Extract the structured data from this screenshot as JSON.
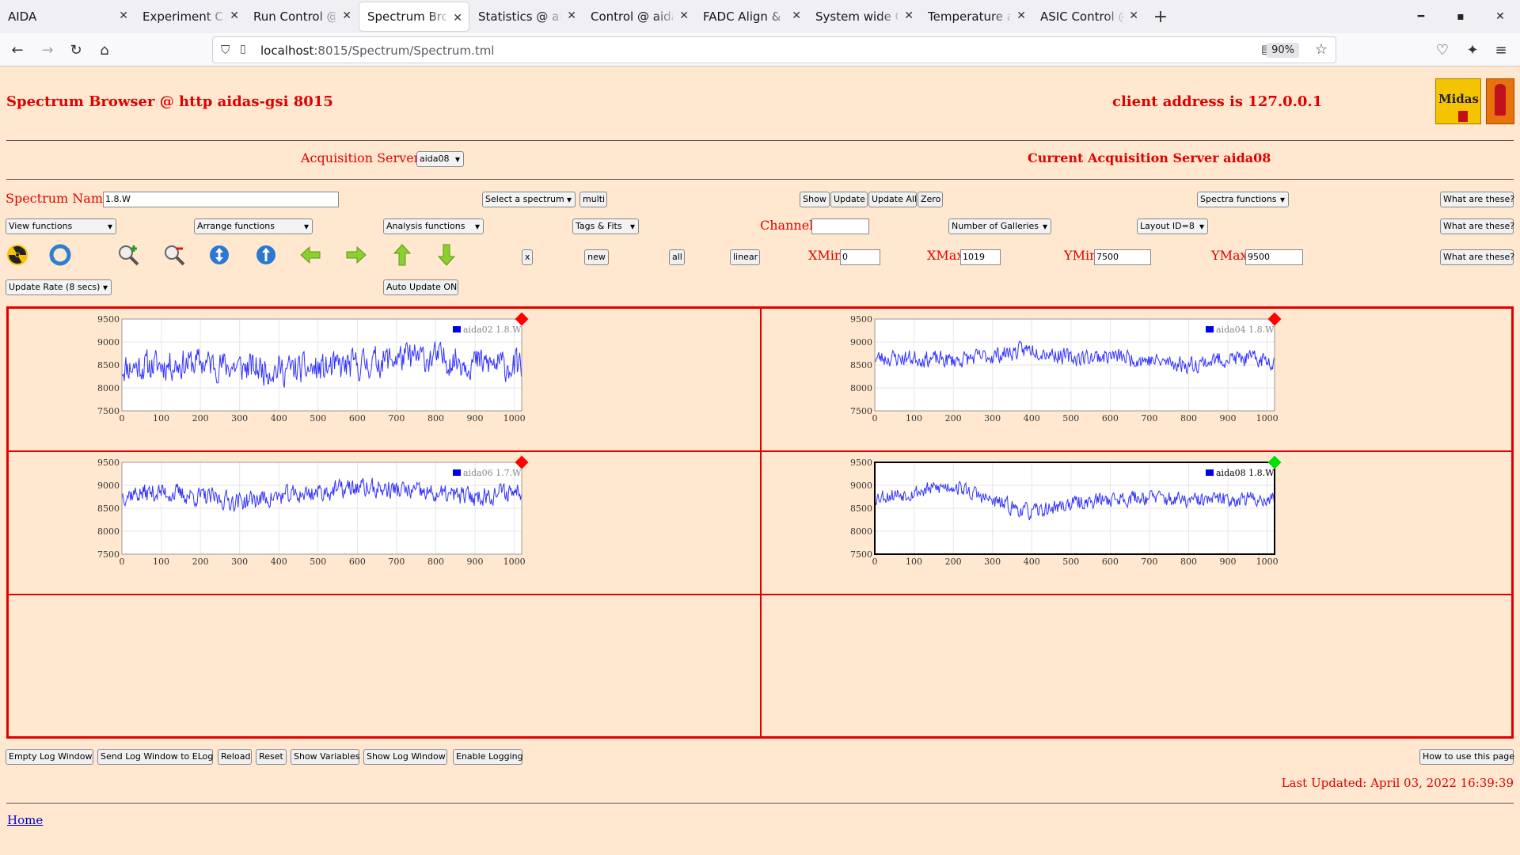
{
  "browser": {
    "tabs": [
      {
        "label": "AIDA",
        "active": false
      },
      {
        "label": "Experiment Control @",
        "active": false
      },
      {
        "label": "Run Control @ aidas-",
        "active": false
      },
      {
        "label": "Spectrum Browser @",
        "active": true
      },
      {
        "label": "Statistics @ aidas-gsi",
        "active": false
      },
      {
        "label": "Control @ aidas-gsi",
        "active": false
      },
      {
        "label": "FADC Align & Contro",
        "active": false
      },
      {
        "label": "System wide Checks",
        "active": false
      },
      {
        "label": "Temperature and stat",
        "active": false
      },
      {
        "label": "ASIC Control @ aidas",
        "active": false
      }
    ],
    "url_host": "localhost",
    "url_rest": ":8015/Spectrum/Spectrum.tml",
    "zoom": "90%"
  },
  "header": {
    "title": "Spectrum Browser @ http aidas-gsi 8015",
    "client_address": "client address is 127.0.0.1",
    "logo_text": "Midas"
  },
  "servers": {
    "label": "Acquisition Servers",
    "selected": "aida08",
    "current": "Current Acquisition Server aida08"
  },
  "controls": {
    "spectrum_name_label": "Spectrum Name:",
    "spectrum_name_value": "1.8.W",
    "select_spectrum": "Select a spectrum",
    "multi": "multi",
    "show": "Show",
    "update": "Update",
    "update_all": "Update All",
    "zero": "Zero",
    "spectra_functions": "Spectra functions",
    "what_are_these": "What are these?",
    "view_functions": "View functions",
    "arrange_functions": "Arrange functions",
    "analysis_functions": "Analysis functions",
    "tags_fits": "Tags & Fits",
    "channel_label": "Channel:",
    "channel_value": "",
    "galleries": "Number of Galleries",
    "layout": "Layout ID=8",
    "x_btn": "x",
    "new_btn": "new",
    "all_btn": "all",
    "linear_btn": "linear",
    "xmin_label": "XMin",
    "xmin_value": "0",
    "xmax_label": "XMax",
    "xmax_value": "1019",
    "ymin_label": "YMin",
    "ymin_value": "7500",
    "ymax_label": "YMax",
    "ymax_value": "9500",
    "update_rate": "Update Rate (8 secs)",
    "auto_update": "Auto Update ON"
  },
  "chart_data": [
    {
      "type": "line",
      "legend": "aida02 1.8.W",
      "xlim": [
        0,
        1019
      ],
      "ylim": [
        7500,
        9500
      ],
      "xticks": [
        0,
        100,
        200,
        300,
        400,
        500,
        600,
        700,
        800,
        900,
        1000
      ],
      "yticks": [
        7500,
        8000,
        8500,
        9000,
        9500
      ],
      "status": "red",
      "selected": false,
      "profile_x": [
        0,
        100,
        200,
        300,
        400,
        500,
        600,
        700,
        800,
        900,
        1019
      ],
      "profile_y": [
        8450,
        8500,
        8550,
        8450,
        8400,
        8400,
        8500,
        8650,
        8650,
        8550,
        8450
      ],
      "noise": 330,
      "seed": 11
    },
    {
      "type": "line",
      "legend": "aida04 1.8.W",
      "xlim": [
        0,
        1019
      ],
      "ylim": [
        7500,
        9500
      ],
      "xticks": [
        0,
        100,
        200,
        300,
        400,
        500,
        600,
        700,
        800,
        900,
        1000
      ],
      "yticks": [
        7500,
        8000,
        8500,
        9000,
        9500
      ],
      "status": "red",
      "selected": false,
      "profile_x": [
        0,
        100,
        200,
        300,
        400,
        500,
        600,
        700,
        800,
        900,
        1019
      ],
      "profile_y": [
        8650,
        8650,
        8600,
        8700,
        8850,
        8650,
        8700,
        8600,
        8500,
        8650,
        8600
      ],
      "noise": 180,
      "seed": 23
    },
    {
      "type": "line",
      "legend": "aida06 1.7.W",
      "xlim": [
        0,
        1019
      ],
      "ylim": [
        7500,
        9500
      ],
      "xticks": [
        0,
        100,
        200,
        300,
        400,
        500,
        600,
        700,
        800,
        900,
        1000
      ],
      "yticks": [
        7500,
        8000,
        8500,
        9000,
        9500
      ],
      "status": "red",
      "selected": false,
      "profile_x": [
        0,
        100,
        200,
        300,
        400,
        500,
        600,
        700,
        800,
        900,
        1019
      ],
      "profile_y": [
        8800,
        8850,
        8750,
        8650,
        8750,
        8850,
        8950,
        8900,
        8800,
        8750,
        8900
      ],
      "noise": 210,
      "seed": 37
    },
    {
      "type": "line",
      "legend": "aida08 1.8.W",
      "xlim": [
        0,
        1019
      ],
      "ylim": [
        7500,
        9500
      ],
      "xticks": [
        0,
        100,
        200,
        300,
        400,
        500,
        600,
        700,
        800,
        900,
        1000
      ],
      "yticks": [
        7500,
        8000,
        8500,
        9000,
        9500
      ],
      "status": "green",
      "selected": true,
      "profile_x": [
        0,
        100,
        200,
        300,
        400,
        500,
        600,
        700,
        800,
        900,
        1019
      ],
      "profile_y": [
        8750,
        8850,
        9000,
        8650,
        8400,
        8600,
        8700,
        8750,
        8650,
        8700,
        8700
      ],
      "noise": 170,
      "seed": 53
    }
  ],
  "footer": {
    "buttons": [
      "Empty Log Window",
      "Send Log Window to ELog",
      "Reload",
      "Reset",
      "Show Variables",
      "Show Log Window",
      "Enable Logging"
    ],
    "how_to": "How to use this page",
    "last_updated": "Last Updated: April 03, 2022 16:39:39",
    "home": "Home"
  },
  "colors": {
    "accent": "#e00000",
    "background": "#ffe8cf",
    "series": "#0000ff",
    "status_red": "#ff0000",
    "status_green": "#00e000"
  }
}
